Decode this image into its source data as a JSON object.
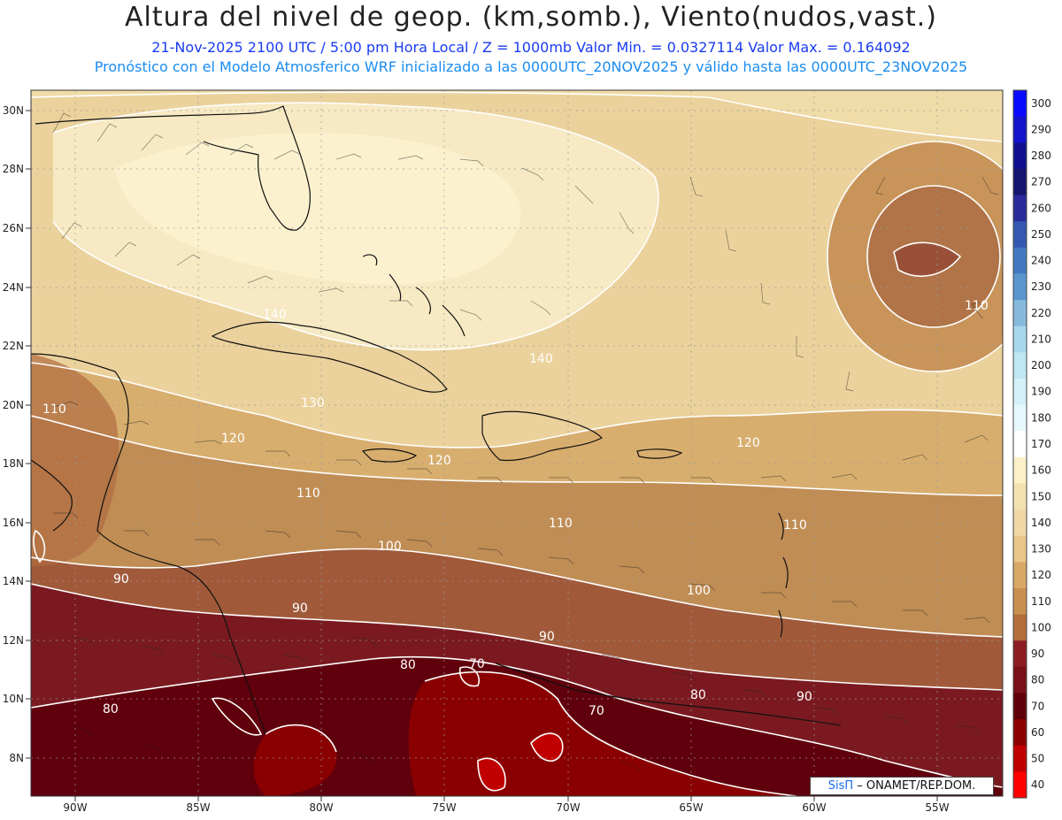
{
  "title": "Altura del nivel de geop. (km,somb.), Viento(nudos,vast.)",
  "subtitle_line1": "21-Nov-2025  2100 UTC / 5:00 pm Hora Local / Z = 1000mb  Valor Min. = 0.0327114  Valor Max. = 0.164092",
  "subtitle_line2": "Pronóstico con el Modelo Atmosferico WRF inicializado a las 0000UTC_20NOV2025 y válido hasta las  0000UTC_23NOV2025",
  "credit": {
    "logo_text": "SisΠ",
    "org_text": "– ONAMET/REP.DOM."
  },
  "map": {
    "lat_labels": [
      "30N",
      "28N",
      "26N",
      "24N",
      "22N",
      "20N",
      "18N",
      "16N",
      "14N",
      "12N",
      "10N",
      "8N"
    ],
    "lon_labels": [
      "90W",
      "85W",
      "80W",
      "75W",
      "70W",
      "65W",
      "60W",
      "55W"
    ],
    "contour_labels": [
      "110",
      "120",
      "130",
      "140",
      "120",
      "110",
      "100",
      "90",
      "80",
      "70",
      "110",
      "120",
      "110",
      "100",
      "90",
      "80",
      "70",
      "110",
      "90",
      "80"
    ]
  },
  "colorbar": {
    "levels": [
      "300",
      "290",
      "280",
      "270",
      "260",
      "250",
      "240",
      "230",
      "220",
      "210",
      "200",
      "190",
      "180",
      "170",
      "160",
      "150",
      "140",
      "130",
      "120",
      "110",
      "100",
      "90",
      "80",
      "70",
      "60",
      "50",
      "40"
    ],
    "colors": [
      "#0a0aff",
      "#1414cc",
      "#101090",
      "#161670",
      "#2a2a9a",
      "#3458b0",
      "#4478c0",
      "#5a96cc",
      "#86badc",
      "#a8d8ec",
      "#bfe6f2",
      "#d4f0f8",
      "#e6f8fc",
      "#ffffff",
      "#fbf0c8",
      "#f3e2b0",
      "#efd8a4",
      "#e9c78a",
      "#d9a866",
      "#c8904f",
      "#b46e3c",
      "#8c1c22",
      "#7a1018",
      "#600008",
      "#8c0000",
      "#c00000",
      "#ff0000"
    ]
  },
  "colors": {
    "band_light": "#f4e8c0",
    "band_pale": "#fbf1cf",
    "band_wheat": "#ebd29c",
    "band_tan": "#d8ae6e",
    "band_brown": "#b8814a",
    "band_rust": "#9a4c34",
    "band_maroon": "#7a1a20",
    "band_deep": "#60000c",
    "band_red": "#8a0000"
  }
}
